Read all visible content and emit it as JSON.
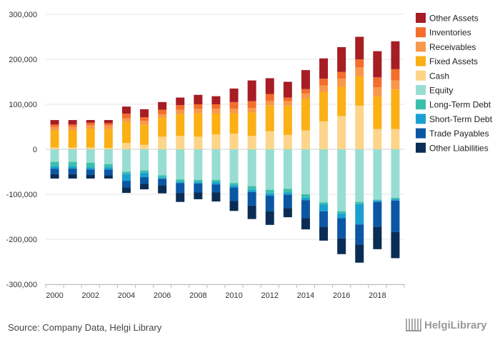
{
  "chart_data": {
    "type": "bar",
    "stacked": true,
    "title": "",
    "xlabel": "",
    "ylabel": "",
    "ylim": [
      -300000,
      300000
    ],
    "y_ticks": [
      -300000,
      -200000,
      -100000,
      0,
      100000,
      200000,
      300000
    ],
    "y_tick_labels": [
      "-300,000",
      "-200,000",
      "-100,000",
      "0",
      "100,000",
      "200,000",
      "300,000"
    ],
    "categories": [
      2000,
      2001,
      2002,
      2003,
      2004,
      2005,
      2006,
      2007,
      2008,
      2009,
      2010,
      2011,
      2012,
      2013,
      2014,
      2015,
      2016,
      2017,
      2018,
      2019
    ],
    "x_tick_labels": [
      "2000",
      "2002",
      "2004",
      "2006",
      "2008",
      "2010",
      "2012",
      "2014",
      "2016",
      "2018"
    ],
    "legend_position": "right",
    "positive_series": [
      {
        "name": "Cash",
        "color": "#fcd58a",
        "values": [
          4000,
          4000,
          4000,
          3000,
          14000,
          10000,
          28000,
          30000,
          28000,
          33000,
          35000,
          30000,
          40000,
          32000,
          42000,
          62000,
          74000,
          97000,
          45000,
          45000
        ]
      },
      {
        "name": "Fixed Assets",
        "color": "#fbb016",
        "values": [
          38000,
          38000,
          42000,
          42000,
          47000,
          45000,
          42000,
          48000,
          52000,
          47000,
          45000,
          52000,
          58000,
          65000,
          70000,
          65000,
          65000,
          65000,
          73000,
          88000
        ]
      },
      {
        "name": "Receivables",
        "color": "#f8984c",
        "values": [
          8000,
          8000,
          8000,
          8000,
          8000,
          8000,
          8000,
          10000,
          10000,
          10000,
          10000,
          10000,
          10000,
          10000,
          12000,
          15000,
          18000,
          20000,
          20000,
          20000
        ]
      },
      {
        "name": "Inventories",
        "color": "#f36d2b",
        "values": [
          5000,
          5000,
          5000,
          5000,
          10000,
          8000,
          10000,
          10000,
          10000,
          10000,
          15000,
          15000,
          15000,
          8000,
          10000,
          15000,
          15000,
          18000,
          22000,
          25000
        ]
      },
      {
        "name": "Other Assets",
        "color": "#a61d24",
        "values": [
          10000,
          10000,
          6000,
          7000,
          16000,
          18000,
          17000,
          17000,
          21000,
          18000,
          30000,
          46000,
          35000,
          35000,
          42000,
          45000,
          55000,
          50000,
          58000,
          62000
        ]
      }
    ],
    "negative_series": [
      {
        "name": "Equity",
        "color": "#97ddd2",
        "values": [
          -28000,
          -28000,
          -30000,
          -33000,
          -50000,
          -47000,
          -58000,
          -67000,
          -68000,
          -68000,
          -75000,
          -82000,
          -90000,
          -88000,
          -100000,
          -118000,
          -138000,
          -117000,
          -112000,
          -108000
        ]
      },
      {
        "name": "Long-Term Debt",
        "color": "#3bbfad",
        "values": [
          -10000,
          -10000,
          -10000,
          -7000,
          -5000,
          -5000,
          -5000,
          -5000,
          -5000,
          -5000,
          -5000,
          -8000,
          -8000,
          -8000,
          -8000,
          -5000,
          -5000,
          -5000,
          -2000,
          -3000
        ]
      },
      {
        "name": "Short-Term Debt",
        "color": "#1aa0d0",
        "values": [
          -5000,
          -5000,
          -5000,
          -5000,
          -15000,
          -10000,
          -3000,
          -3000,
          -3000,
          -5000,
          -5000,
          -5000,
          -5000,
          -5000,
          -5000,
          -15000,
          -10000,
          -45000,
          -3000,
          -3000
        ]
      },
      {
        "name": "Trade Payables",
        "color": "#0b57a4",
        "values": [
          -12000,
          -12000,
          -12000,
          -13000,
          -15000,
          -15000,
          -14000,
          -22000,
          -20000,
          -18000,
          -30000,
          -30000,
          -35000,
          -30000,
          -40000,
          -35000,
          -45000,
          -45000,
          -55000,
          -70000
        ]
      },
      {
        "name": "Other Liabilities",
        "color": "#0b2d55",
        "values": [
          -10000,
          -10000,
          -8000,
          -7000,
          -12000,
          -12000,
          -18000,
          -20000,
          -15000,
          -20000,
          -22000,
          -30000,
          -30000,
          -20000,
          -25000,
          -30000,
          -35000,
          -40000,
          -50000,
          -58000
        ]
      }
    ],
    "legend": [
      {
        "name": "Other Assets",
        "color": "#a61d24"
      },
      {
        "name": "Inventories",
        "color": "#f36d2b"
      },
      {
        "name": "Receivables",
        "color": "#f8984c"
      },
      {
        "name": "Fixed Assets",
        "color": "#fbb016"
      },
      {
        "name": "Cash",
        "color": "#fcd58a"
      },
      {
        "name": "Equity",
        "color": "#97ddd2"
      },
      {
        "name": "Long-Term Debt",
        "color": "#3bbfad"
      },
      {
        "name": "Short-Term Debt",
        "color": "#1aa0d0"
      },
      {
        "name": "Trade Payables",
        "color": "#0b57a4"
      },
      {
        "name": "Other Liabilities",
        "color": "#0b2d55"
      }
    ]
  },
  "footer": {
    "source": "Source: Company Data, Helgi Library",
    "logo_text": "HelgiLibrary"
  }
}
